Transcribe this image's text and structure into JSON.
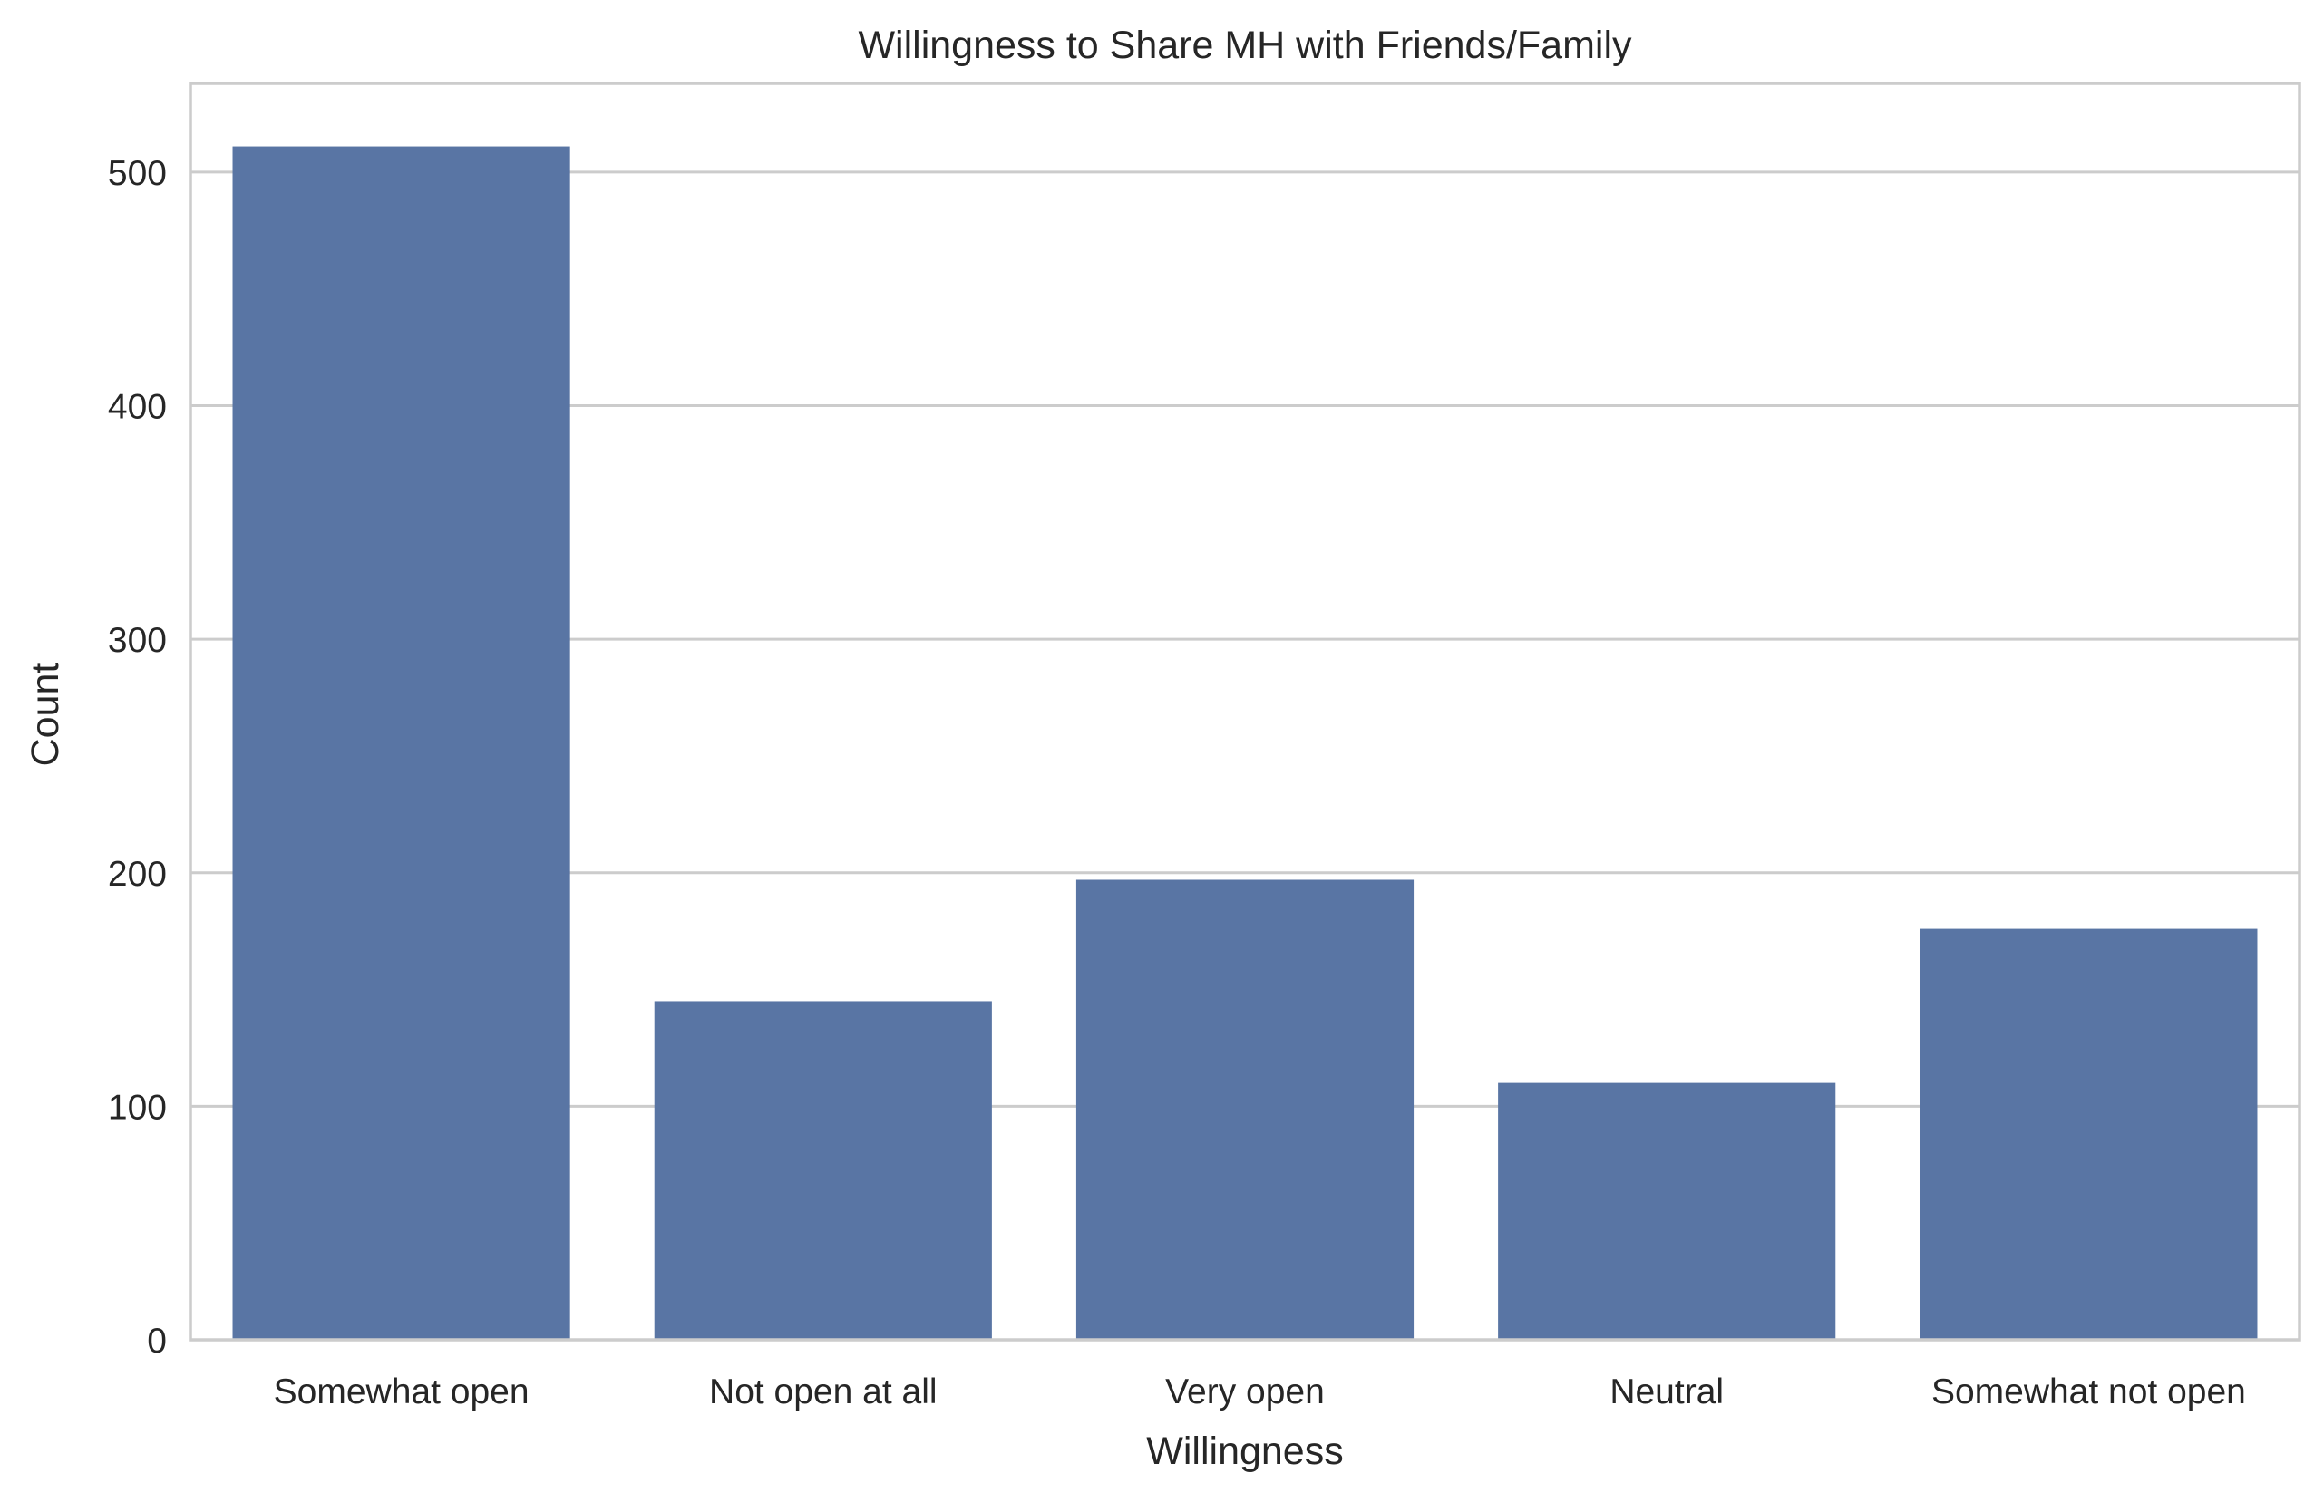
{
  "chart_data": {
    "type": "bar",
    "title": "Willingness to Share MH with Friends/Family",
    "xlabel": "Willingness",
    "ylabel": "Count",
    "categories": [
      "Somewhat open",
      "Not open at all",
      "Very open",
      "Neutral",
      "Somewhat not open"
    ],
    "values": [
      511,
      145,
      197,
      110,
      176
    ],
    "ylim": [
      0,
      538
    ],
    "yticks": [
      0,
      100,
      200,
      300,
      400,
      500
    ],
    "grid": true,
    "legend": "none"
  },
  "colors": {
    "bar": "#5975a4",
    "grid": "#cccccc",
    "spine": "#cccccc",
    "text": "#262626",
    "background": "#ffffff"
  }
}
